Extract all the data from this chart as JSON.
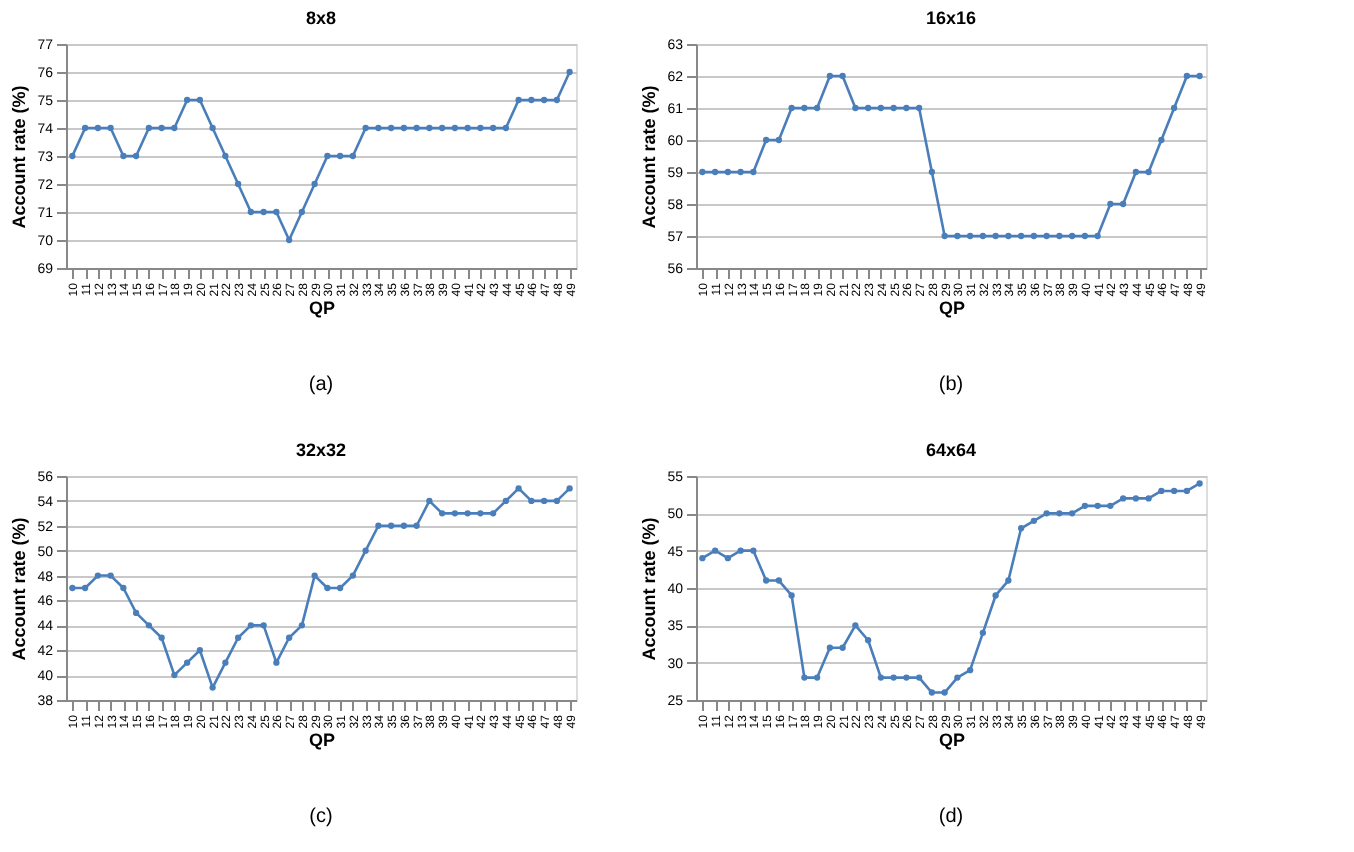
{
  "chart_data": [
    {
      "type": "line",
      "title": "8x8",
      "xlabel": "QP",
      "ylabel": "Account rate (%)",
      "annotations": [
        "(a)"
      ],
      "color": "#4a7ebb",
      "marker": "circle",
      "grid": "y",
      "ylim": [
        69,
        77
      ],
      "yticks": [
        69,
        70,
        71,
        72,
        73,
        74,
        75,
        76,
        77
      ],
      "categories": [
        "10",
        "11",
        "12",
        "13",
        "14",
        "15",
        "16",
        "17",
        "18",
        "19",
        "20",
        "21",
        "22",
        "23",
        "24",
        "25",
        "26",
        "27",
        "28",
        "29",
        "30",
        "31",
        "32",
        "33",
        "34",
        "35",
        "36",
        "37",
        "38",
        "39",
        "40",
        "41",
        "42",
        "43",
        "44",
        "45",
        "46",
        "47",
        "48",
        "49"
      ],
      "values": [
        73,
        74,
        74,
        74,
        73,
        73,
        74,
        74,
        74,
        75,
        75,
        74,
        73,
        72,
        71,
        71,
        71,
        70,
        71,
        72,
        73,
        73,
        73,
        74,
        74,
        74,
        74,
        74,
        74,
        74,
        74,
        74,
        74,
        74,
        74,
        75,
        75,
        75,
        75,
        76
      ]
    },
    {
      "type": "line",
      "title": "16x16",
      "xlabel": "QP",
      "ylabel": "Account rate (%)",
      "annotations": [
        "(b)"
      ],
      "color": "#4a7ebb",
      "marker": "circle",
      "grid": "y",
      "ylim": [
        56,
        63
      ],
      "yticks": [
        56,
        57,
        58,
        59,
        60,
        61,
        62,
        63
      ],
      "categories": [
        "10",
        "11",
        "12",
        "13",
        "14",
        "15",
        "16",
        "17",
        "18",
        "19",
        "20",
        "21",
        "22",
        "23",
        "24",
        "25",
        "26",
        "27",
        "28",
        "29",
        "30",
        "31",
        "32",
        "33",
        "34",
        "35",
        "36",
        "37",
        "38",
        "39",
        "40",
        "41",
        "42",
        "43",
        "44",
        "45",
        "46",
        "47",
        "48",
        "49"
      ],
      "values": [
        59,
        59,
        59,
        59,
        59,
        60,
        60,
        61,
        61,
        61,
        62,
        62,
        61,
        61,
        61,
        61,
        61,
        61,
        59,
        57,
        57,
        57,
        57,
        57,
        57,
        57,
        57,
        57,
        57,
        57,
        57,
        57,
        58,
        58,
        59,
        59,
        60,
        61,
        62,
        62
      ]
    },
    {
      "type": "line",
      "title": "32x32",
      "xlabel": "QP",
      "ylabel": "Account rate (%)",
      "annotations": [
        "(c)"
      ],
      "color": "#4a7ebb",
      "marker": "circle",
      "grid": "y",
      "ylim": [
        38,
        56
      ],
      "yticks": [
        38,
        40,
        42,
        44,
        46,
        48,
        50,
        52,
        54,
        56
      ],
      "categories": [
        "10",
        "11",
        "12",
        "13",
        "14",
        "15",
        "16",
        "17",
        "18",
        "19",
        "20",
        "21",
        "22",
        "23",
        "24",
        "25",
        "26",
        "27",
        "28",
        "29",
        "30",
        "31",
        "32",
        "33",
        "34",
        "35",
        "36",
        "37",
        "38",
        "39",
        "40",
        "41",
        "42",
        "43",
        "44",
        "45",
        "46",
        "47",
        "48",
        "49"
      ],
      "values": [
        47,
        47,
        48,
        48,
        47,
        45,
        44,
        43,
        40,
        41,
        42,
        39,
        41,
        43,
        44,
        44,
        41,
        43,
        44,
        48,
        47,
        47,
        48,
        50,
        52,
        52,
        52,
        52,
        54,
        53,
        53,
        53,
        53,
        53,
        54,
        55,
        54,
        54,
        54,
        55
      ]
    },
    {
      "type": "line",
      "title": "64x64",
      "xlabel": "QP",
      "ylabel": "Account rate (%)",
      "annotations": [
        "(d)"
      ],
      "color": "#4a7ebb",
      "marker": "circle",
      "grid": "y",
      "ylim": [
        25,
        55
      ],
      "yticks": [
        25,
        30,
        35,
        40,
        45,
        50,
        55
      ],
      "categories": [
        "10",
        "11",
        "12",
        "13",
        "14",
        "15",
        "16",
        "17",
        "18",
        "19",
        "20",
        "21",
        "22",
        "23",
        "24",
        "25",
        "26",
        "27",
        "28",
        "29",
        "30",
        "31",
        "32",
        "33",
        "34",
        "35",
        "36",
        "37",
        "38",
        "39",
        "40",
        "41",
        "42",
        "43",
        "44",
        "45",
        "46",
        "47",
        "48",
        "49"
      ],
      "values": [
        44,
        45,
        44,
        45,
        45,
        41,
        41,
        39,
        28,
        28,
        32,
        32,
        35,
        33,
        28,
        28,
        28,
        28,
        26,
        26,
        28,
        29,
        34,
        39,
        41,
        48,
        49,
        50,
        50,
        50,
        51,
        51,
        51,
        52,
        52,
        52,
        53,
        53,
        53,
        54
      ]
    }
  ]
}
